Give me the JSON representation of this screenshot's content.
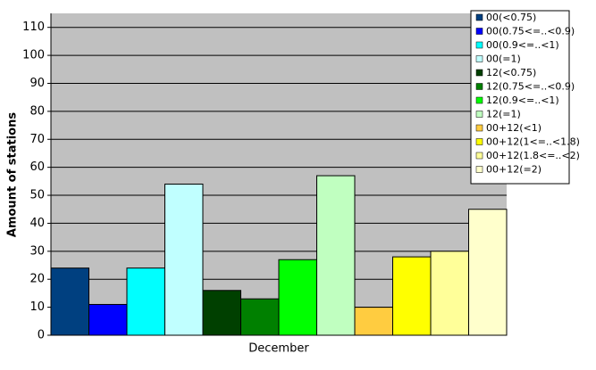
{
  "chart_data": {
    "type": "bar",
    "ylabel": "Amount of stations",
    "categories": [
      "December"
    ],
    "series": [
      {
        "name": "00(<0.75)",
        "color": "#004080",
        "values": [
          24
        ]
      },
      {
        "name": "00(0.75<=..<0.9)",
        "color": "#0000ff",
        "values": [
          11
        ]
      },
      {
        "name": "00(0.9<=..<1)",
        "color": "#00ffff",
        "values": [
          24
        ]
      },
      {
        "name": "00(=1)",
        "color": "#c0ffff",
        "values": [
          54
        ]
      },
      {
        "name": "12(<0.75)",
        "color": "#004000",
        "values": [
          16
        ]
      },
      {
        "name": "12(0.75<=..<0.9)",
        "color": "#008000",
        "values": [
          13
        ]
      },
      {
        "name": "12(0.9<=..<1)",
        "color": "#00ff00",
        "values": [
          27
        ]
      },
      {
        "name": "12(=1)",
        "color": "#c0ffc0",
        "values": [
          57
        ]
      },
      {
        "name": "00+12(<1)",
        "color": "#ffcc40",
        "values": [
          10
        ]
      },
      {
        "name": "00+12(1<=..<1.8)",
        "color": "#ffff00",
        "values": [
          28
        ]
      },
      {
        "name": "00+12(1.8<=..<2)",
        "color": "#ffff99",
        "values": [
          30
        ]
      },
      {
        "name": "00+12(=2)",
        "color": "#ffffcc",
        "values": [
          45
        ]
      }
    ],
    "ylim": [
      0,
      115
    ],
    "yticks": [
      0,
      10,
      20,
      30,
      40,
      50,
      60,
      70,
      80,
      90,
      100,
      110
    ],
    "grid": true,
    "legend": "top-right"
  }
}
